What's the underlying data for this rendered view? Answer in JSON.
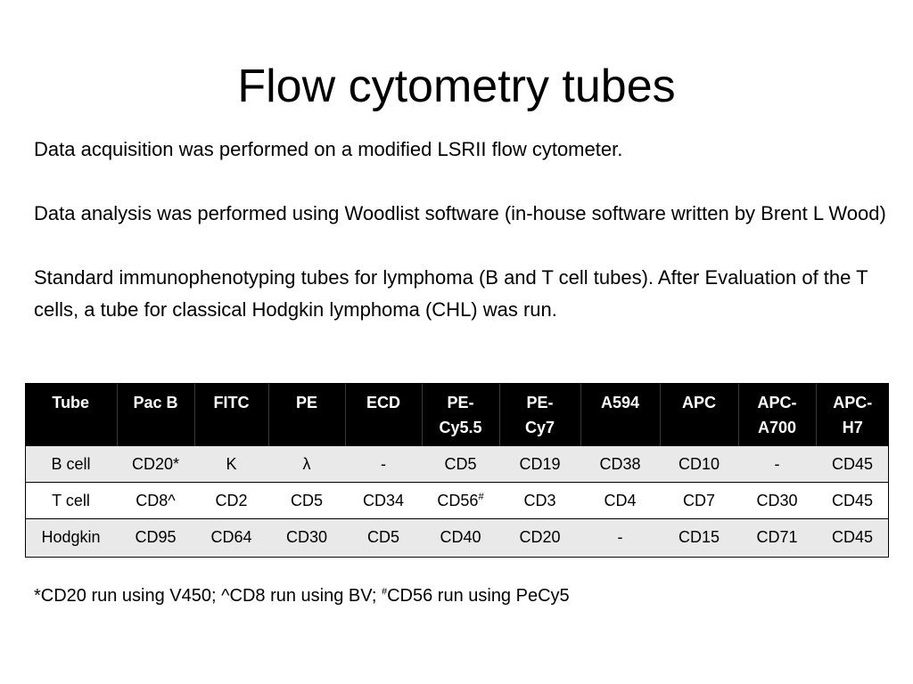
{
  "slide": {
    "title": "Flow cytometry tubes",
    "paragraphs": [
      "Data acquisition was performed on a modified LSRII flow cytometer.",
      "Data analysis was performed using Woodlist software (in-house software written by Brent L Wood)",
      "Standard immunophenotyping tubes for lymphoma (B and T cell tubes).  After Evaluation of the T cells, a tube for classical Hodgkin lymphoma (CHL) was run."
    ]
  },
  "table": {
    "headers": [
      "Tube",
      "Pac B",
      "FITC",
      "PE",
      "ECD",
      "PE-Cy5.5",
      "PE-Cy7",
      "A594",
      "APC",
      "APC-A700",
      "APC-H7"
    ],
    "header_lines": [
      [
        "Tube"
      ],
      [
        "Pac B"
      ],
      [
        "FITC"
      ],
      [
        "PE"
      ],
      [
        "ECD"
      ],
      [
        "PE-",
        "Cy5.5"
      ],
      [
        "PE-",
        "Cy7"
      ],
      [
        "A594"
      ],
      [
        "APC"
      ],
      [
        "APC-",
        "A700"
      ],
      [
        "APC-",
        "H7"
      ]
    ],
    "rows": [
      [
        "B cell",
        "CD20*",
        "K",
        "λ",
        "-",
        "CD5",
        "CD19",
        "CD38",
        "CD10",
        "-",
        "CD45"
      ],
      [
        "T cell",
        "CD8^",
        "CD2",
        "CD5",
        "CD34",
        "CD56",
        "CD3",
        "CD4",
        "CD7",
        "CD30",
        "CD45"
      ],
      [
        "Hodgkin",
        "CD95",
        "CD64",
        "CD30",
        "CD5",
        "CD40",
        "CD20",
        "-",
        "CD15",
        "CD71",
        "CD45"
      ]
    ],
    "superscript_mark": "#",
    "colors": {
      "header_background": "#000000",
      "header_text": "#ffffff",
      "shaded_row": "#e9e9e9"
    }
  },
  "footnote": {
    "part1": "*CD20 run using V450; ^CD8 run using BV; ",
    "mark": "#",
    "part2": "CD56 run using PeCy5"
  }
}
